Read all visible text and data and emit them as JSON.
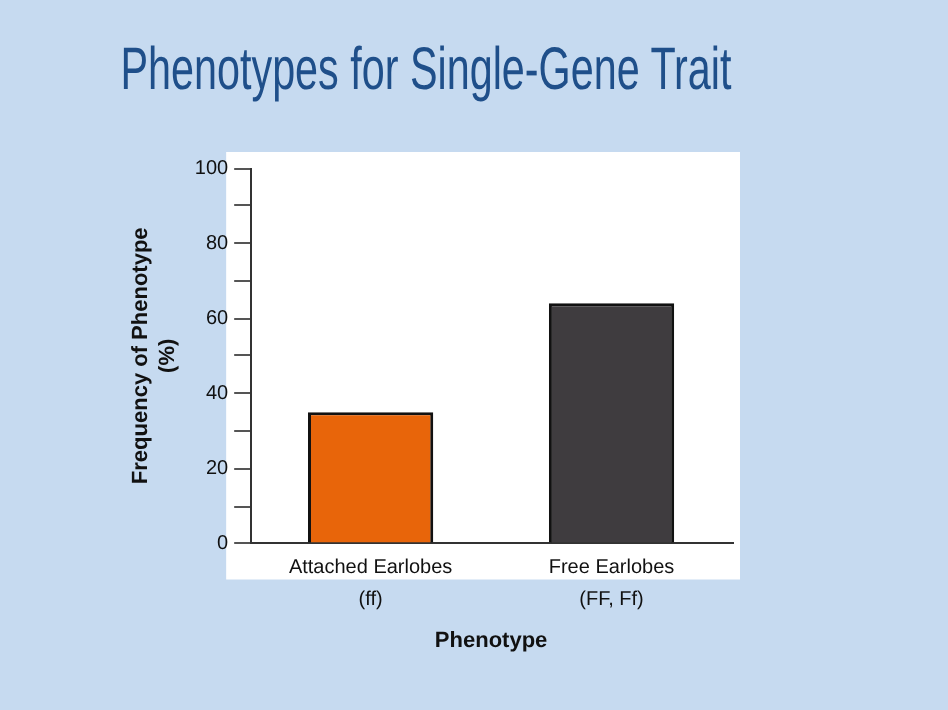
{
  "chart_data": {
    "type": "bar",
    "title": "Phenotypes for Single-Gene Trait",
    "categories": [
      "Attached Earlobes\n(ff)",
      "Free Earlobes\n(FF, Ff)"
    ],
    "values": [
      35,
      64
    ],
    "colors": [
      "#e8650a",
      "#3f3c3f"
    ],
    "xlabel": "Phenotype",
    "ylabel": "Frequency of Phenotype\n(%)",
    "ylim": [
      0,
      100
    ],
    "yticks": [
      0,
      {
        "value": 10,
        "label": null
      },
      20,
      {
        "value": 30,
        "label": null
      },
      40,
      {
        "value": 50,
        "label": null
      },
      60,
      {
        "value": 70,
        "label": null
      },
      80,
      {
        "value": 90,
        "label": null
      },
      100
    ],
    "grid": false,
    "legend": false
  }
}
